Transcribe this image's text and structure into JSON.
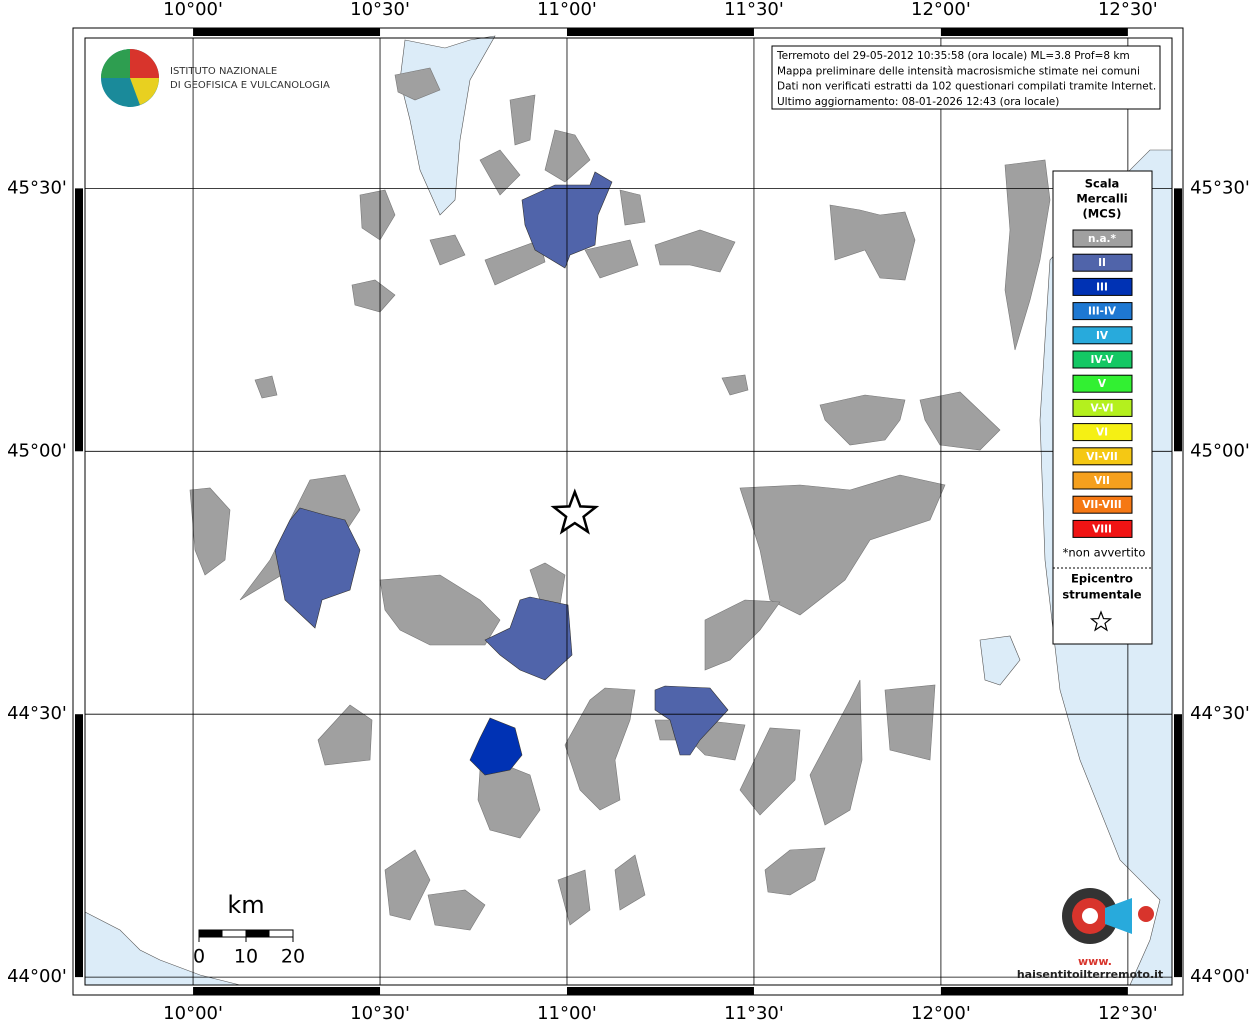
{
  "map": {
    "lon_ticks": [
      {
        "value": 10,
        "label": "10°00'"
      },
      {
        "value": 10.5,
        "label": "10°30'"
      },
      {
        "value": 11,
        "label": "11°00'"
      },
      {
        "value": 11.5,
        "label": "11°30'"
      },
      {
        "value": 12,
        "label": "12°00'"
      },
      {
        "value": 12.5,
        "label": "12°30'"
      }
    ],
    "lat_ticks": [
      {
        "value": 45.5,
        "label": "45°30'"
      },
      {
        "value": 45,
        "label": "45°00'"
      },
      {
        "value": 44.5,
        "label": "44°30'"
      },
      {
        "value": 44,
        "label": "44°00'"
      }
    ],
    "lonlim": [
      9.711,
      12.618
    ],
    "latlim": [
      43.985,
      45.786
    ],
    "epicenter": {
      "lon": 11.021,
      "lat": 44.881
    }
  },
  "logo": {
    "lines": [
      "ISTITUTO NAZIONALE",
      "DI GEOFISICA E VULCANOLOGIA"
    ]
  },
  "info": {
    "lines": [
      "Terremoto del 29-05-2012 10:35:58 (ora locale) ML=3.8 Prof=8 km",
      "Mappa preliminare delle intensità macrosismiche stimate nei comuni",
      "Dati non verificati estratti da 102 questionari compilati tramite Internet.",
      "Ultimo aggiornamento: 08-01-2026 12:43 (ora locale)"
    ]
  },
  "legend": {
    "title": [
      "Scala",
      "Mercalli",
      "(MCS)"
    ],
    "items": [
      {
        "label": "n.a.*",
        "color": "#a0a0a0"
      },
      {
        "label": "II",
        "color": "#5064aa"
      },
      {
        "label": "III",
        "color": "#0032b4"
      },
      {
        "label": "III-IV",
        "color": "#1e78d2"
      },
      {
        "label": "IV",
        "color": "#28aadc"
      },
      {
        "label": "IV-V",
        "color": "#14c864"
      },
      {
        "label": "V",
        "color": "#32f032"
      },
      {
        "label": "V-VI",
        "color": "#b4f01e"
      },
      {
        "label": "VI",
        "color": "#f5f014"
      },
      {
        "label": "VI-VII",
        "color": "#f5c814"
      },
      {
        "label": "VII",
        "color": "#f5a01e"
      },
      {
        "label": "VII-VIII",
        "color": "#f57814"
      },
      {
        "label": "VIII",
        "color": "#f01414"
      }
    ],
    "note": "*non avvertito",
    "epicenter_title": [
      "Epicentro",
      "strumentale"
    ]
  },
  "scale_bar": {
    "unit": "km",
    "ticks": [
      0,
      10,
      20
    ]
  },
  "brand": {
    "text": "haisentitoilterremoto.it",
    "prefix": "www."
  }
}
